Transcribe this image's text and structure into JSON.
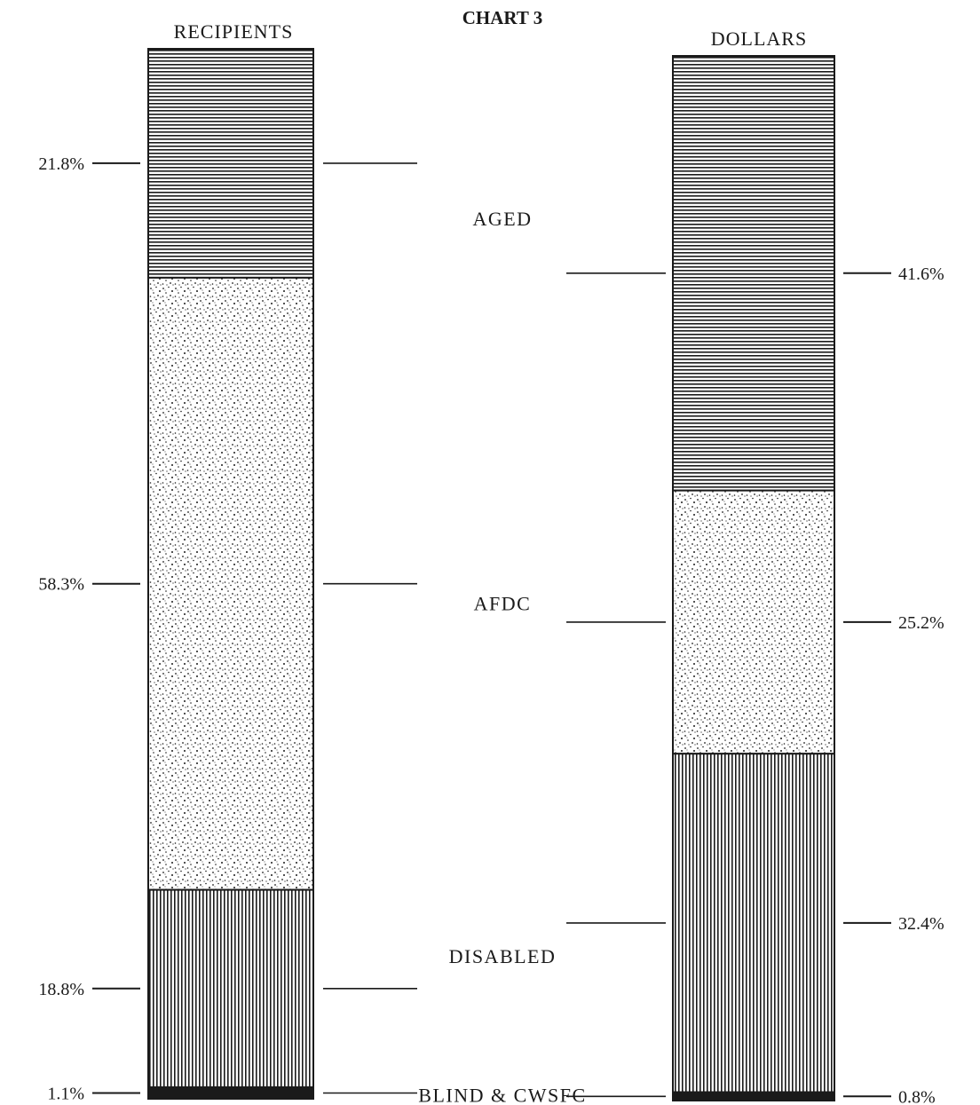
{
  "chart_data": {
    "type": "bar",
    "stacked": true,
    "percent_scale": true,
    "title": "CHART 3",
    "categories": [
      "RECIPIENTS",
      "DOLLARS"
    ],
    "series": [
      {
        "name": "AGED",
        "values": [
          21.8,
          41.6
        ],
        "labels": [
          "21.8%",
          "41.6%"
        ],
        "pattern": "horizontal-lines"
      },
      {
        "name": "AFDC",
        "values": [
          58.3,
          25.2
        ],
        "labels": [
          "58.3%",
          "25.2%"
        ],
        "pattern": "stipple"
      },
      {
        "name": "DISABLED",
        "values": [
          18.8,
          32.4
        ],
        "labels": [
          "18.8%",
          "32.4%"
        ],
        "pattern": "vertical-lines"
      },
      {
        "name": "BLIND & CWSFC",
        "values": [
          1.1,
          0.8
        ],
        "labels": [
          "1.1%",
          "0.8%"
        ],
        "pattern": "solid"
      }
    ],
    "colors": {
      "ink": "#1a1a1a",
      "background": "#ffffff"
    }
  }
}
